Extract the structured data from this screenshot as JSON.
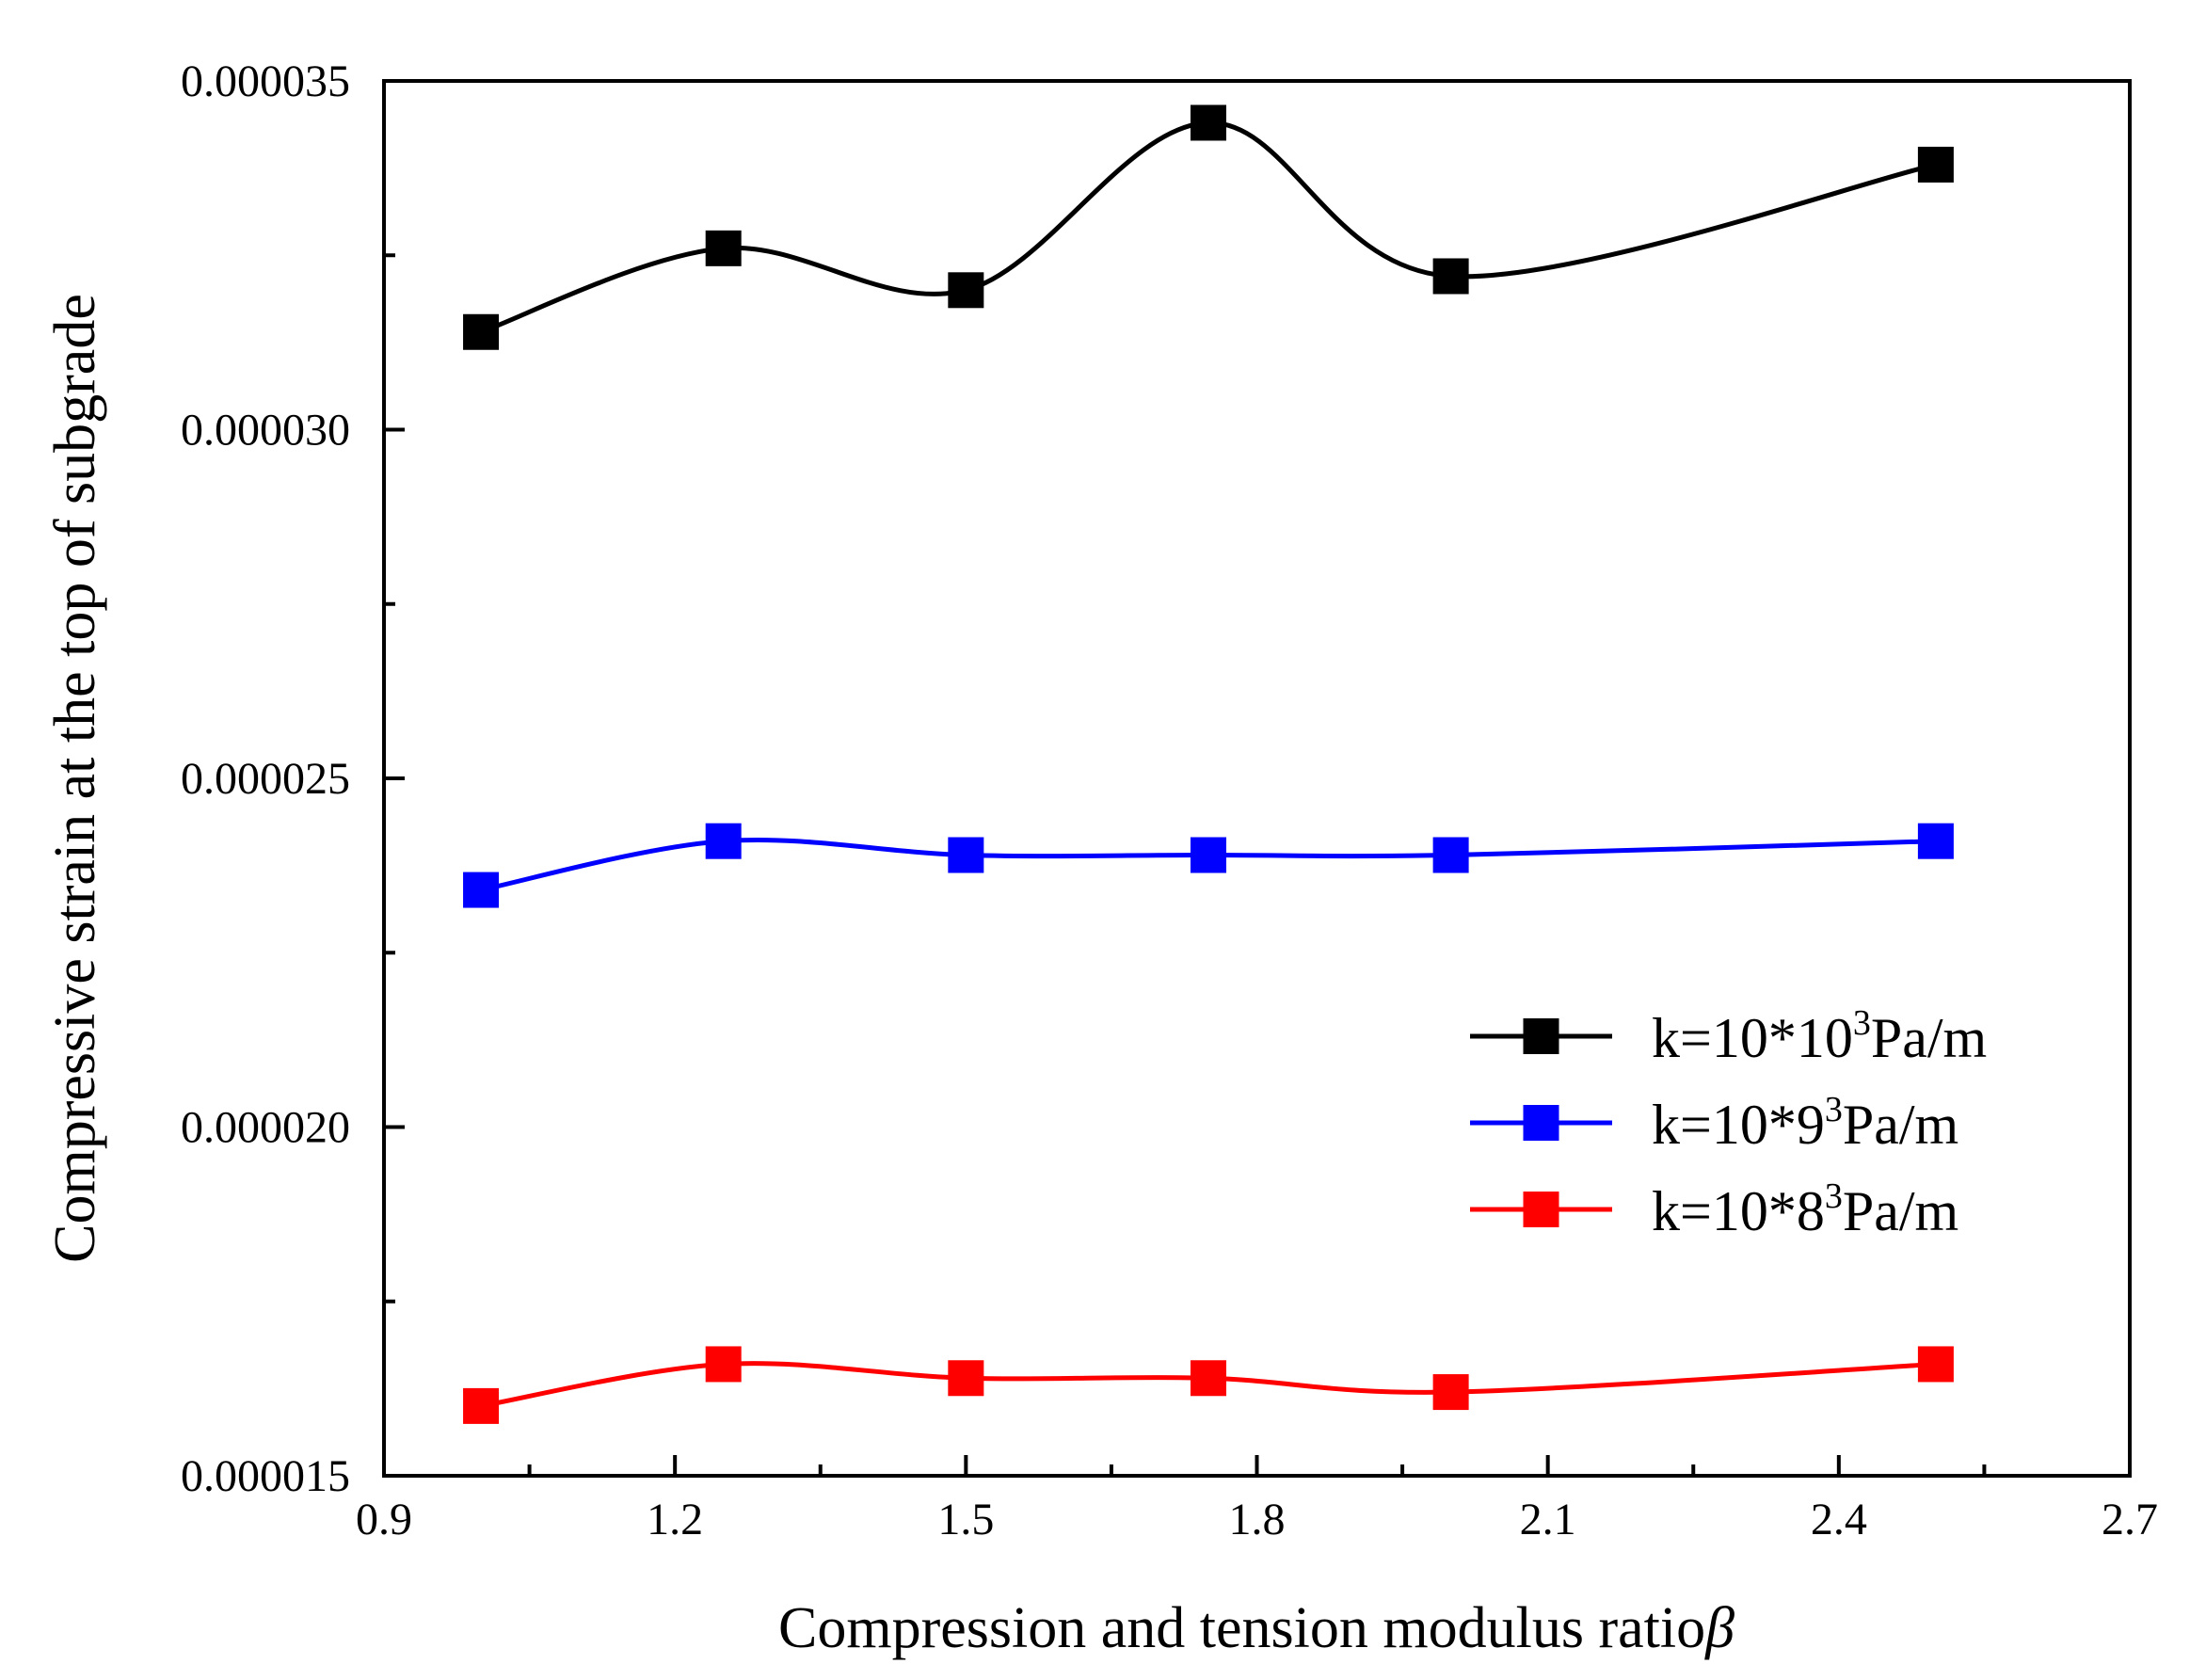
{
  "chart_data": {
    "type": "line",
    "title": "",
    "xlabel": "Compression and tension modulus ratio",
    "xlabel_symbol": "β",
    "ylabel": "Compressive strain at the top of subgrade",
    "xlim": [
      0.9,
      2.7
    ],
    "ylim": [
      1.5e-05,
      3.5e-05
    ],
    "x_ticks": [
      "0.9",
      "1.2",
      "1.5",
      "1.8",
      "2.1",
      "2.4",
      "2.7"
    ],
    "y_ticks": [
      "0.000015",
      "0.000020",
      "0.000025",
      "0.000030",
      "0.000035"
    ],
    "x": [
      1.0,
      1.25,
      1.5,
      1.75,
      2.0,
      2.5
    ],
    "grid": false,
    "legend_position": "center-right",
    "series": [
      {
        "name": "k=10*10³Pa/m",
        "label_main": "k=10*10",
        "label_sup": "3",
        "label_unit": "Pa/m",
        "color": "#000000",
        "values": [
          3.14e-05,
          3.26e-05,
          3.2e-05,
          3.44e-05,
          3.22e-05,
          3.38e-05
        ]
      },
      {
        "name": "k=10*9³Pa/m",
        "label_main": "k=10*9",
        "label_sup": "3",
        "label_unit": "Pa/m",
        "color": "#0000ff",
        "values": [
          2.34e-05,
          2.41e-05,
          2.39e-05,
          2.39e-05,
          2.39e-05,
          2.41e-05
        ]
      },
      {
        "name": "k=10*8³Pa/m",
        "label_main": "k=10*8",
        "label_sup": "3",
        "label_unit": "Pa/m",
        "color": "#ff0000",
        "values": [
          1.6e-05,
          1.66e-05,
          1.64e-05,
          1.64e-05,
          1.62e-05,
          1.66e-05
        ]
      }
    ]
  }
}
